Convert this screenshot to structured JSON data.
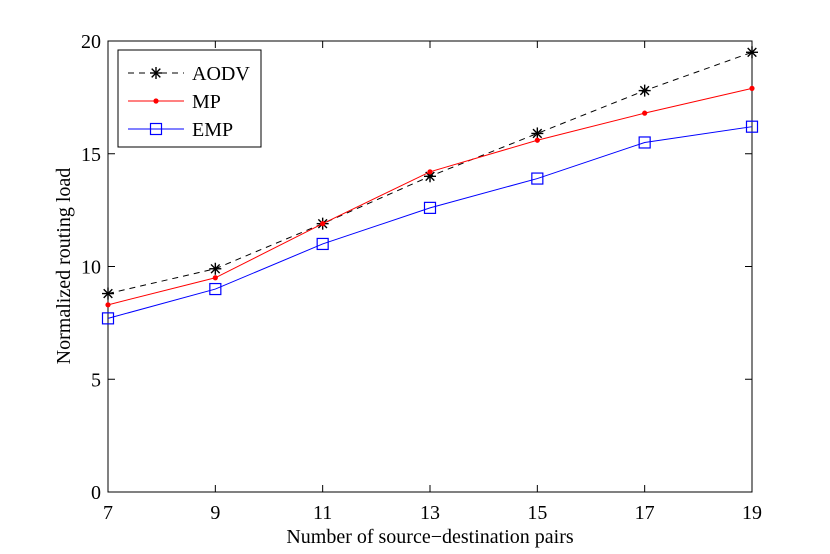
{
  "chart_data": {
    "type": "line",
    "title": "",
    "xlabel": "Number of source−destination pairs",
    "ylabel": "Normalized routing load",
    "x": [
      7,
      9,
      11,
      13,
      15,
      17,
      19
    ],
    "xlim": [
      7,
      19
    ],
    "ylim": [
      0,
      20
    ],
    "xticks": [
      "7",
      "9",
      "11",
      "13",
      "15",
      "17",
      "19"
    ],
    "yticks": [
      "0",
      "5",
      "10",
      "15",
      "20"
    ],
    "grid": false,
    "legend_position": "top-left",
    "series": [
      {
        "name": "AODV",
        "color": "#000000",
        "line_style": "dashed",
        "marker": "asterisk",
        "values": [
          8.8,
          9.9,
          11.9,
          14.0,
          15.9,
          17.8,
          19.5
        ]
      },
      {
        "name": "MP",
        "color": "#ff0000",
        "line_style": "solid",
        "marker": "dot",
        "values": [
          8.3,
          9.5,
          11.9,
          14.2,
          15.6,
          16.8,
          17.9
        ]
      },
      {
        "name": "EMP",
        "color": "#0000ff",
        "line_style": "solid",
        "marker": "square",
        "values": [
          7.7,
          9.0,
          11.0,
          12.6,
          13.9,
          15.5,
          16.2
        ]
      }
    ]
  }
}
